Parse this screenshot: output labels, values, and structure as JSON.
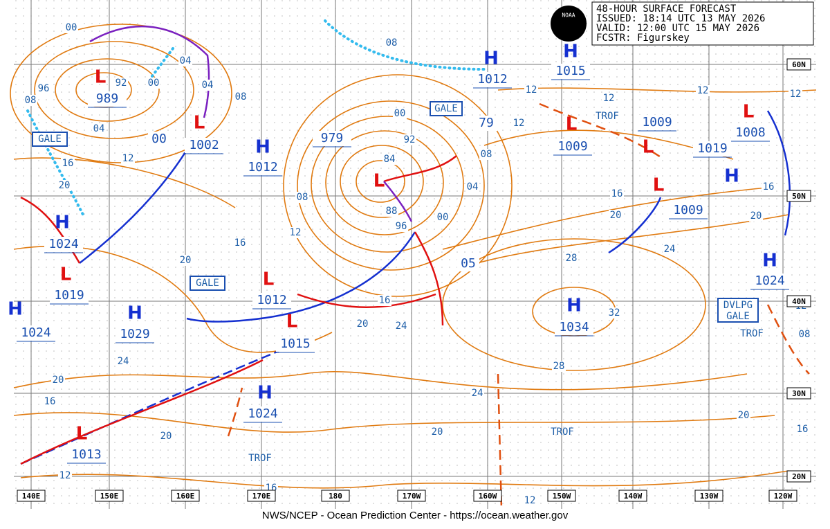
{
  "header": {
    "logo": "NOAA",
    "lines": [
      "48-HOUR SURFACE FORECAST",
      "ISSUED: 18:14 UTC 13 MAY 2026",
      "VALID:  12:00 UTC 15 MAY 2026",
      "FCSTR:  Figurskey"
    ]
  },
  "longitudes": [
    "140E",
    "150E",
    "160E",
    "170E",
    "180",
    "170W",
    "160W",
    "150W",
    "140W",
    "130W",
    "120W"
  ],
  "latitudes": [
    "60N",
    "50N",
    "40N",
    "30N",
    "20N"
  ],
  "pressure_centers": [
    {
      "symbol": "H",
      "pressure": "1012"
    },
    {
      "symbol": "H",
      "pressure": "1015"
    },
    {
      "symbol": "H",
      "pressure": "1012"
    },
    {
      "symbol": "H",
      "pressure": "1024"
    },
    {
      "symbol": "H",
      "pressure": "1029"
    },
    {
      "symbol": "H",
      "pressure": "1024"
    },
    {
      "symbol": "H",
      "pressure": "1034"
    },
    {
      "symbol": "H",
      "pressure": "1024"
    },
    {
      "symbol": "H",
      "pressure": "1019"
    },
    {
      "symbol": "H",
      "pressure": "1024"
    },
    {
      "symbol": "L",
      "pressure": "989"
    },
    {
      "symbol": "L",
      "pressure": "1002"
    },
    {
      "symbol": "L",
      "pressure": "979"
    },
    {
      "symbol": "L",
      "pressure": "1019"
    },
    {
      "symbol": "L",
      "pressure": "1012"
    },
    {
      "symbol": "L",
      "pressure": "1015"
    },
    {
      "symbol": "L",
      "pressure": "1013"
    },
    {
      "symbol": "L",
      "pressure": "1009"
    },
    {
      "symbol": "L",
      "pressure": "1009"
    },
    {
      "symbol": "L",
      "pressure": "1009"
    },
    {
      "symbol": "L",
      "pressure": "1008"
    }
  ],
  "pressure_labels": [
    "79",
    "05",
    "00"
  ],
  "isobar_labels": [
    "00",
    "96",
    "92",
    "00",
    "04",
    "04",
    "08",
    "08",
    "04",
    "12",
    "16",
    "20",
    "08",
    "00",
    "92",
    "84",
    "88",
    "96",
    "00",
    "04",
    "08",
    "12",
    "12",
    "12",
    "12",
    "12",
    "16",
    "16",
    "20",
    "20",
    "24",
    "28",
    "32",
    "28",
    "24",
    "20",
    "24",
    "20",
    "16",
    "08",
    "12",
    "16",
    "20",
    "24",
    "20",
    "16",
    "20",
    "16",
    "12",
    "12",
    "12",
    "08",
    "20",
    "16"
  ],
  "warnings": [
    "GALE",
    "GALE",
    "GALE",
    "DVLPG",
    "GALE"
  ],
  "troughs": [
    "TROF",
    "TROF",
    "TROF",
    "TROF"
  ],
  "footer": "NWS/NCEP - Ocean Prediction Center - https://ocean.weather.gov"
}
